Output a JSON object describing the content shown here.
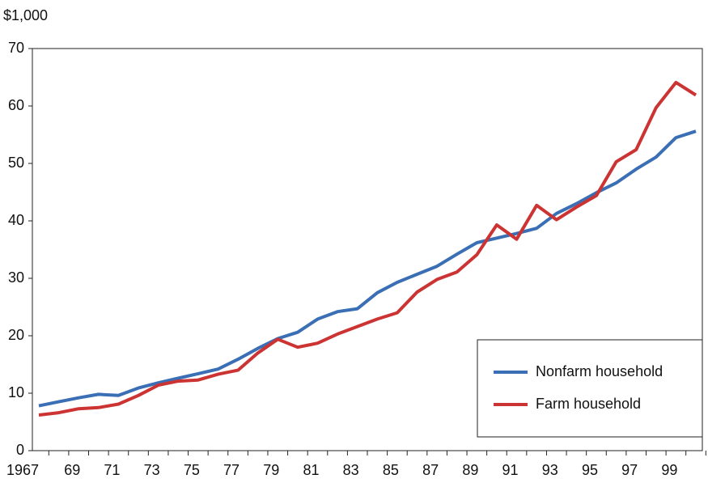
{
  "chart_data": {
    "type": "line",
    "unit_label": "$1,000",
    "categories": [
      "1967",
      null,
      "69",
      null,
      "71",
      null,
      "73",
      null,
      "75",
      null,
      "77",
      null,
      "79",
      null,
      "81",
      null,
      "83",
      null,
      "85",
      null,
      "87",
      null,
      "89",
      null,
      "91",
      null,
      "93",
      null,
      "95",
      null,
      "97",
      null,
      "99",
      null
    ],
    "series": [
      {
        "name": "Nonfarm household",
        "color": "#3a6fb5",
        "values": [
          7.8,
          8.5,
          9.2,
          9.8,
          9.6,
          10.9,
          11.8,
          12.6,
          13.4,
          14.2,
          15.9,
          17.8,
          19.5,
          20.6,
          22.9,
          24.2,
          24.7,
          27.5,
          29.3,
          30.7,
          32.1,
          34.2,
          36.2,
          37.0,
          37.8,
          38.7,
          41.3,
          43.0,
          44.9,
          46.6,
          49.0,
          51.1,
          54.5,
          55.6
        ]
      },
      {
        "name": "Farm household",
        "color": "#cc3333",
        "values": [
          6.2,
          6.6,
          7.3,
          7.5,
          8.1,
          9.6,
          11.4,
          12.1,
          12.3,
          13.3,
          14.0,
          17.0,
          19.4,
          18.0,
          18.7,
          20.3,
          21.6,
          22.9,
          24.0,
          27.6,
          29.8,
          31.1,
          34.1,
          39.3,
          36.8,
          42.7,
          40.2,
          42.4,
          44.4,
          50.3,
          52.4,
          59.7,
          64.1,
          61.9
        ]
      }
    ],
    "ylim": [
      0,
      70
    ],
    "yticks": [
      0,
      10,
      20,
      30,
      40,
      50,
      60,
      70
    ],
    "legend": "bottom-right"
  }
}
